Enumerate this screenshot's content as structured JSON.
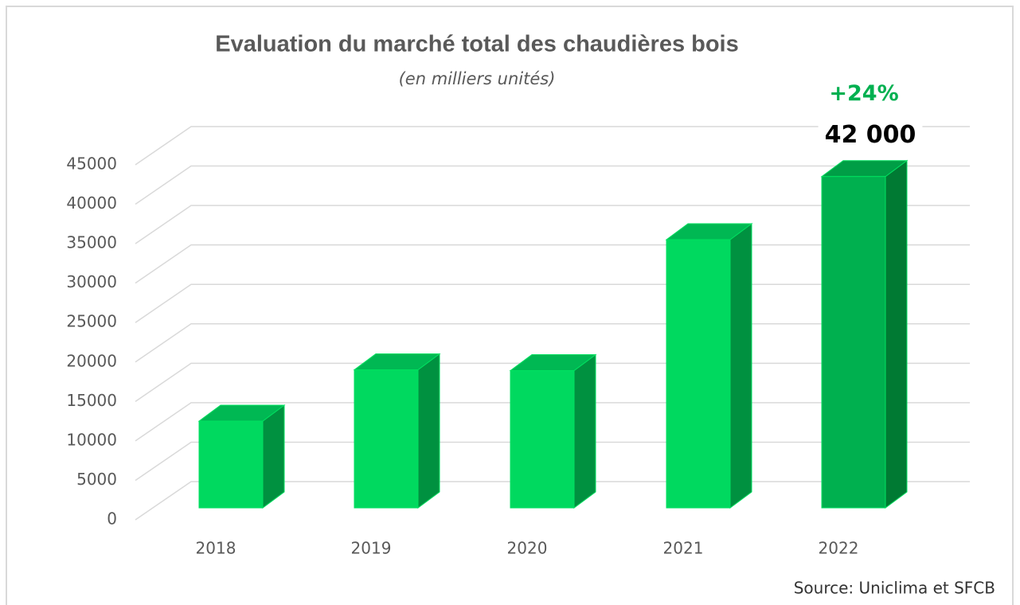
{
  "chart_data": {
    "type": "bar3d",
    "title": "Evaluation du marché total des chaudières bois",
    "subtitle": "(en milliers unités)",
    "categories": [
      "2018",
      "2019",
      "2020",
      "2021",
      "2022"
    ],
    "values": [
      11000,
      17500,
      17400,
      34000,
      42000
    ],
    "value_labels": [
      null,
      null,
      null,
      null,
      "42 000"
    ],
    "colors": [
      "#00d95f",
      "#00d95f",
      "#00d95f",
      "#00d95f",
      "#00b04f"
    ],
    "side_colors": [
      "#009140",
      "#009140",
      "#009140",
      "#009140",
      "#007a33"
    ],
    "top_colors": [
      "#00b853",
      "#00b853",
      "#00b853",
      "#00b853",
      "#009e46"
    ],
    "ylim": [
      0,
      45000
    ],
    "yticks": [
      0,
      5000,
      10000,
      15000,
      20000,
      25000,
      30000,
      35000,
      40000,
      45000
    ],
    "grid": true,
    "annotation": "+24%",
    "annotation_color": "#00b050",
    "source": "Source: Uniclima et SFCB"
  }
}
